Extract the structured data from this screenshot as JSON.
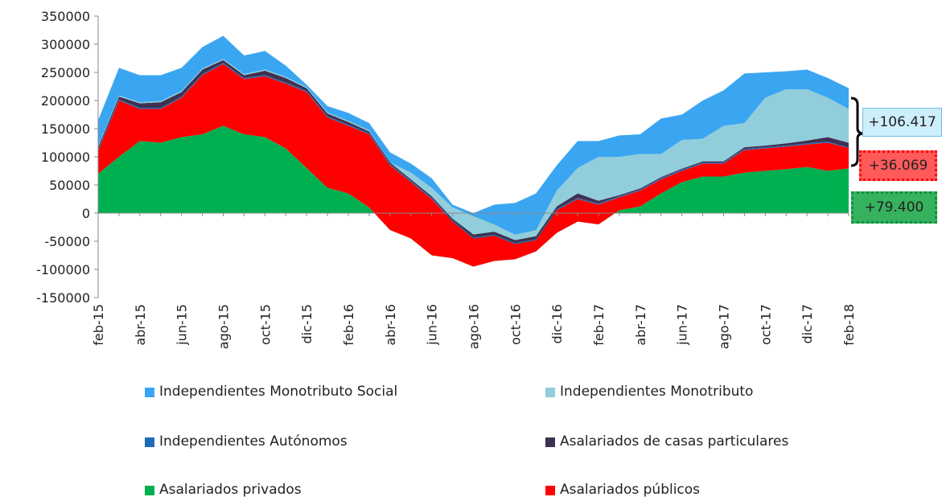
{
  "chart_data": {
    "type": "stacked_area",
    "categories": [
      "feb-15",
      null,
      "abr-15",
      null,
      "jun-15",
      null,
      "ago-15",
      null,
      "oct-15",
      null,
      "dic-15",
      null,
      "feb-16",
      null,
      "abr-16",
      null,
      "jun-16",
      null,
      "ago-16",
      null,
      "oct-16",
      null,
      "dic-16",
      null,
      "feb-17",
      null,
      "abr-17",
      null,
      "jun-17",
      null,
      "ago-17",
      null,
      "oct-17",
      null,
      "dic-17",
      null,
      "feb-18"
    ],
    "series": [
      {
        "name": "Asalariados privados",
        "color": "#00b050",
        "values": [
          70000,
          100000,
          128000,
          125000,
          135000,
          140000,
          155000,
          140000,
          135000,
          115000,
          80000,
          45000,
          35000,
          10000,
          -30000,
          -45000,
          -75000,
          -80000,
          -95000,
          -85000,
          -82000,
          -68000,
          -35000,
          -15000,
          -20000,
          5000,
          12000,
          35000,
          55000,
          65000,
          65000,
          72000,
          75000,
          78000,
          82000,
          75000,
          79400
        ]
      },
      {
        "name": "Asalariados públicos",
        "color": "#ff0000",
        "values": [
          40000,
          100000,
          57000,
          60000,
          70000,
          105000,
          110000,
          98000,
          108000,
          115000,
          135000,
          125000,
          120000,
          130000,
          115000,
          100000,
          100000,
          65000,
          50000,
          45000,
          27000,
          20000,
          40000,
          40000,
          35000,
          23000,
          28000,
          25000,
          20000,
          23000,
          23000,
          40000,
          40000,
          40000,
          40000,
          50000,
          36069
        ]
      },
      {
        "name": "Independientes Autónomos",
        "color": "#1f6bb5",
        "values": [
          2000,
          2000,
          2000,
          2000,
          2000,
          2000,
          2000,
          2000,
          2000,
          2000,
          2000,
          2000,
          2000,
          2000,
          2000,
          2000,
          2000,
          2000,
          2000,
          2000,
          2000,
          2000,
          2000,
          2000,
          2000,
          2000,
          2000,
          2000,
          2000,
          2000,
          2000,
          2000,
          2000,
          2000,
          2000,
          2000,
          1000
        ]
      },
      {
        "name": "Asalariados de casas particulares",
        "color": "#3f3151",
        "values": [
          5000,
          5000,
          8000,
          10000,
          8000,
          8000,
          5000,
          5000,
          8000,
          8000,
          5000,
          5000,
          5000,
          3000,
          3000,
          3000,
          3000,
          3000,
          5000,
          5000,
          5000,
          5000,
          5000,
          8000,
          5000,
          2000,
          2000,
          2000,
          2000,
          2000,
          2000,
          3000,
          3000,
          4000,
          5000,
          8000,
          8531
        ]
      },
      {
        "name": "Independientes Monotributo",
        "color": "#92cddc",
        "values": [
          2000,
          2000,
          2000,
          2000,
          2000,
          2000,
          2000,
          2000,
          2000,
          2000,
          2000,
          2000,
          2000,
          2000,
          0,
          12000,
          15000,
          20000,
          33000,
          13000,
          10000,
          11000,
          28000,
          45000,
          78000,
          68000,
          61000,
          41000,
          51000,
          40000,
          63000,
          43000,
          85000,
          96000,
          91000,
          70000,
          60000
        ]
      },
      {
        "name": "Independientes Monotributo Social",
        "color": "#3aa6f2",
        "values": [
          46000,
          49000,
          48000,
          46000,
          41000,
          38000,
          41000,
          33000,
          33000,
          20000,
          4000,
          11000,
          14000,
          13000,
          18000,
          16000,
          17000,
          5000,
          5000,
          35000,
          56000,
          65000,
          45000,
          48000,
          28000,
          38000,
          35000,
          63000,
          45000,
          68000,
          63000,
          88000,
          45000,
          32000,
          35000,
          35000,
          36886
        ]
      }
    ],
    "ylim": [
      -150000,
      350000
    ],
    "yticks": [
      -150000,
      -100000,
      -50000,
      0,
      50000,
      100000,
      150000,
      200000,
      250000,
      300000,
      350000
    ],
    "annotations": [
      "+106.417",
      "+36.069",
      "+79.400"
    ]
  }
}
